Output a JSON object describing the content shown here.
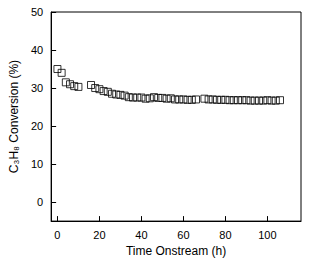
{
  "chart_data": {
    "type": "scatter",
    "xlabel": "Time Onstream (h)",
    "ylabel": "C₃H₈ Conversion (%)",
    "x": [
      0,
      2,
      4,
      6,
      8,
      10,
      16,
      18,
      20,
      22,
      24,
      26,
      28,
      30,
      32,
      34,
      36,
      38,
      40,
      42,
      44,
      46,
      48,
      50,
      52,
      54,
      56,
      58,
      60,
      62,
      64,
      66,
      70,
      72,
      74,
      76,
      78,
      80,
      82,
      84,
      86,
      88,
      90,
      92,
      94,
      96,
      98,
      100,
      102,
      104,
      106
    ],
    "values": [
      35,
      34,
      31.5,
      31,
      30.5,
      30.3,
      30.8,
      30,
      29.7,
      29.2,
      29,
      28.5,
      28.3,
      28.2,
      28,
      27.6,
      27.5,
      27.5,
      27.5,
      27.2,
      27.3,
      27.6,
      27.4,
      27.4,
      27.2,
      27.3,
      27,
      27,
      27,
      26.9,
      26.9,
      27,
      27.2,
      27,
      27,
      26.9,
      26.9,
      26.9,
      26.8,
      26.8,
      26.8,
      26.8,
      26.8,
      26.7,
      26.7,
      26.7,
      26.7,
      26.8,
      26.7,
      26.7,
      26.8
    ],
    "color": "#000000",
    "marker": "open_square",
    "xlim": [
      -3,
      116
    ],
    "xticks": [
      0,
      20,
      40,
      60,
      80,
      100
    ],
    "ylim": [
      -5,
      50
    ],
    "yticks": [
      0,
      10,
      20,
      30,
      40,
      50
    ],
    "grid": false
  }
}
